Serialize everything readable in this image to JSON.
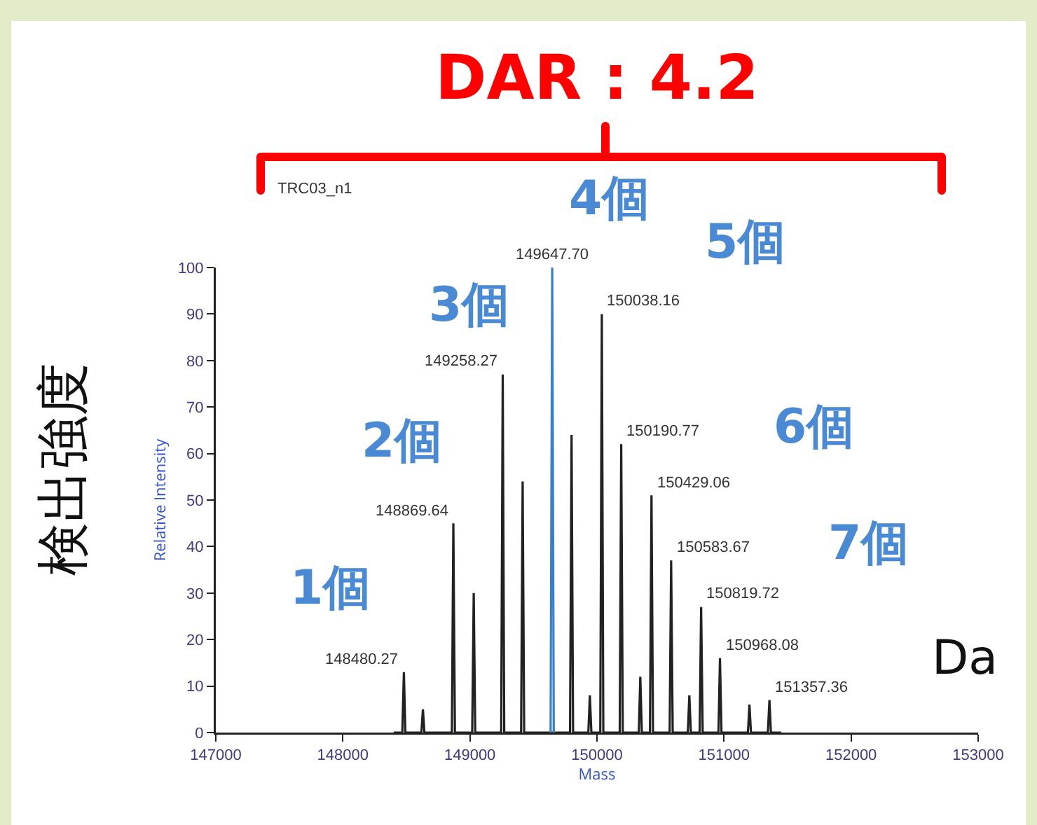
{
  "chart_data": {
    "type": "line",
    "title": "DAR : 4.2",
    "subtitle": "TRC03_n1",
    "xlabel": "Mass",
    "ylabel": "Relative Intensity",
    "xlim": [
      147000,
      153000
    ],
    "xticks": [
      147000,
      148000,
      149000,
      150000,
      151000,
      152000,
      153000
    ],
    "ylim": [
      0,
      100
    ],
    "yticks": [
      0,
      10,
      20,
      30,
      40,
      50,
      60,
      70,
      80,
      90,
      100
    ],
    "grid": false,
    "marker": "none",
    "line_style": "solid",
    "series": [
      {
        "color": "#222222",
        "x": [
          148400,
          148468,
          148480.27,
          148492,
          148618,
          148630,
          148642,
          148858,
          148869.64,
          148882,
          149018,
          149030,
          149042,
          149246,
          149258.27,
          149270,
          149403,
          149415,
          149427,
          149788,
          149800,
          149812,
          149932,
          149944,
          149956,
          150026,
          150038.16,
          150050,
          150179,
          150190.77,
          150203,
          150329,
          150341,
          150353,
          150417,
          150429.06,
          150441,
          150572,
          150583.67,
          150596,
          150715,
          150727,
          150739,
          150808,
          150819.72,
          150832,
          150956,
          150968.08,
          150980,
          151188,
          151200,
          151212,
          151345,
          151357.36,
          151369,
          151450
        ],
        "values": [
          0,
          0,
          13,
          0,
          0,
          5,
          0,
          0,
          45,
          0,
          0,
          30,
          0,
          0,
          77,
          0,
          0,
          54,
          0,
          0,
          64,
          0,
          0,
          8,
          0,
          0,
          90,
          0,
          0,
          62,
          0,
          0,
          12,
          0,
          0,
          51,
          0,
          0,
          37,
          0,
          0,
          8,
          0,
          0,
          27,
          0,
          0,
          16,
          0,
          0,
          6,
          0,
          0,
          7,
          0,
          0
        ]
      },
      {
        "color": "#3a7fc9",
        "x": [
          149635,
          149647.7,
          149660
        ],
        "values": [
          0,
          100,
          0
        ]
      }
    ],
    "annotations": [
      {
        "text": "148480.27",
        "x": 148480.27,
        "y": 13
      },
      {
        "text": "148869.64",
        "x": 148869.64,
        "y": 45
      },
      {
        "text": "149258.27",
        "x": 149258.27,
        "y": 77
      },
      {
        "text": "149647.70",
        "x": 149647.7,
        "y": 100
      },
      {
        "text": "150038.16",
        "x": 150038.16,
        "y": 90
      },
      {
        "text": "150190.77",
        "x": 150190.77,
        "y": 62
      },
      {
        "text": "150429.06",
        "x": 150429.06,
        "y": 51
      },
      {
        "text": "150583.67",
        "x": 150583.67,
        "y": 37
      },
      {
        "text": "150819.72",
        "x": 150819.72,
        "y": 27
      },
      {
        "text": "150968.08",
        "x": 150968.08,
        "y": 16
      },
      {
        "text": "151357.36",
        "x": 151357.36,
        "y": 7
      },
      "1個",
      "2個",
      "3個",
      "4個",
      "5個",
      "6個",
      "7個",
      "検出強度",
      "Da"
    ]
  }
}
